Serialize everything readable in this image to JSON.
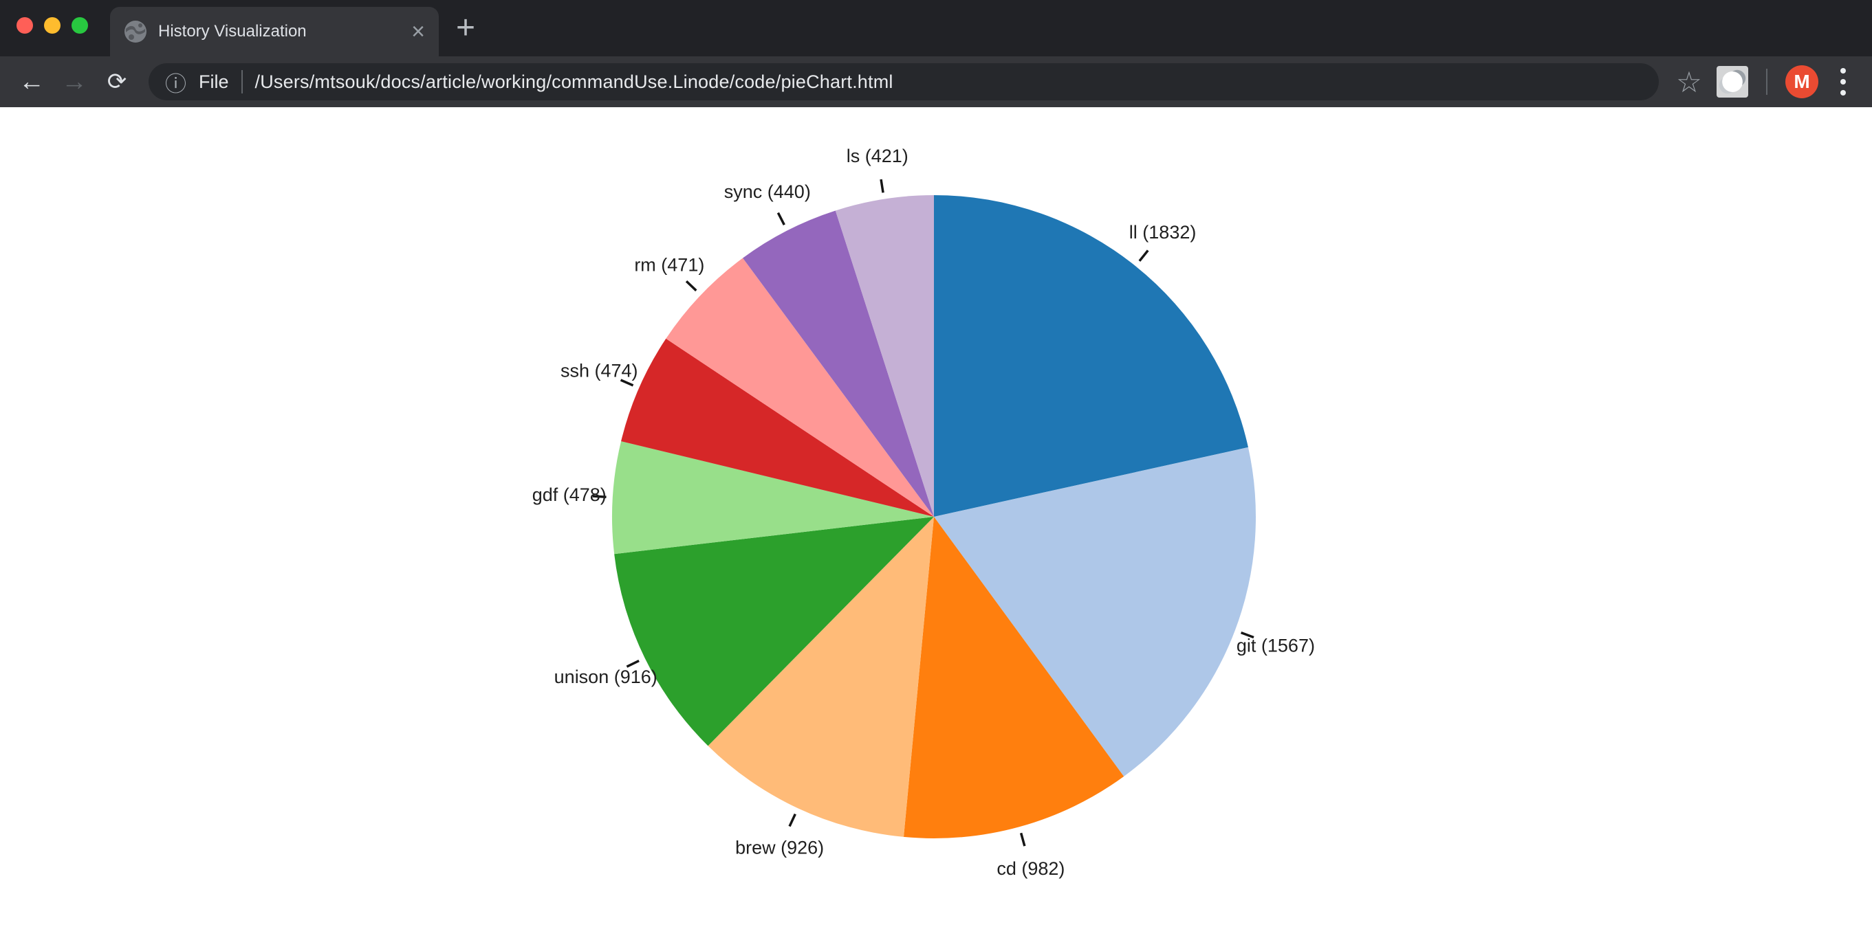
{
  "window": {
    "traffic_light_colors": [
      "#ff5f57",
      "#febc2e",
      "#28c840"
    ]
  },
  "browser": {
    "tab": {
      "title": "History Visualization"
    },
    "glyphs": {
      "close_tab": "×",
      "new_tab": "+",
      "back": "←",
      "forward": "→",
      "reload": "⟳",
      "page_info": "ⓘ",
      "bookmark_star": "☆"
    },
    "address": {
      "scheme_label": "File",
      "url": "/Users/mtsouk/docs/article/working/commandUse.Linode/code/pieChart.html"
    },
    "profile": {
      "avatar_letter": "M",
      "avatar_color": "#ea4b32"
    }
  },
  "chart_data": {
    "type": "pie",
    "title": "",
    "labels": [
      "ll",
      "git",
      "cd",
      "brew",
      "unison",
      "gdf",
      "ssh",
      "rm",
      "sync",
      "ls"
    ],
    "values": [
      1832,
      1567,
      982,
      926,
      916,
      478,
      474,
      471,
      440,
      421
    ],
    "colors": [
      "#1f77b4",
      "#aec7e8",
      "#ff7f0e",
      "#ffbb78",
      "#2ca02c",
      "#98df8a",
      "#d62728",
      "#ff9896",
      "#9467bd",
      "#c5b0d5"
    ],
    "label_format": "{label} ({value})",
    "start_angle_deg": 0,
    "direction": "clockwise",
    "sort_order": "descending",
    "legend": "none",
    "label_color": "#1f1f1f",
    "tick_color": "#151515"
  }
}
